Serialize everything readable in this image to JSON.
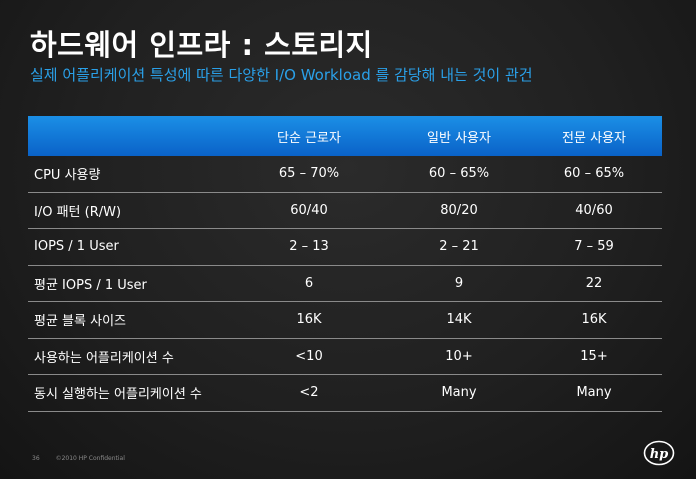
{
  "slide": {
    "title": "하드웨어 인프라 : 스토리지",
    "subtitle": "실제 어플리케이션 특성에 따른 다양한 I/O Workload 를 감당해 내는 것이 관건"
  },
  "table": {
    "headers": [
      "",
      "단순 근로자",
      "일반 사용자",
      "전문 사용자"
    ],
    "rows": [
      [
        "CPU 사용량",
        "65 – 70%",
        "60 – 65%",
        "60 – 65%"
      ],
      [
        "I/O 패턴 (R/W)",
        "60/40",
        "80/20",
        "40/60"
      ],
      [
        "IOPS / 1 User",
        "2 – 13",
        "2 – 21",
        "7 – 59"
      ],
      [
        "평균 IOPS / 1 User",
        "6",
        "9",
        "22"
      ],
      [
        "평균 블록 사이즈",
        "16K",
        "14K",
        "16K"
      ],
      [
        "사용하는 어플리케이션 수",
        "<10",
        "10+",
        "15+"
      ],
      [
        "동시 실행하는 어플리케이션 수",
        "<2",
        "Many",
        "Many"
      ]
    ]
  },
  "footer": {
    "page_number": "36",
    "copyright": "©2010 HP Confidential"
  },
  "logo": {
    "text": "hp",
    "icon": "hp-logo-icon"
  },
  "colors": {
    "accent": "#2aa0e8",
    "header_bar": "#1b8fe6"
  }
}
